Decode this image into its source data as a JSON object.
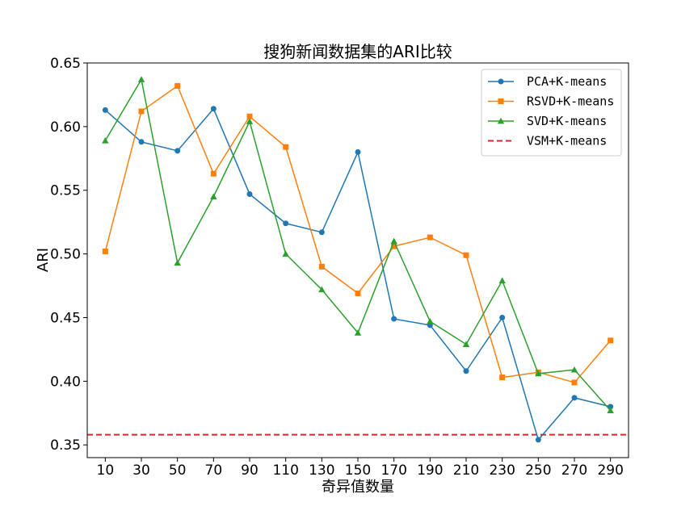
{
  "chart_data": {
    "type": "line",
    "title": "搜狗新闻数据集的ARI比较",
    "xlabel": "奇异值数量",
    "ylabel": "ARI",
    "x": [
      10,
      30,
      50,
      70,
      90,
      110,
      130,
      150,
      170,
      190,
      210,
      230,
      250,
      270,
      290
    ],
    "x_tick_labels": [
      "10",
      "30",
      "50",
      "70",
      "90",
      "110",
      "130",
      "150",
      "170",
      "190",
      "210",
      "230",
      "250",
      "270",
      "290"
    ],
    "ylim": [
      0.34,
      0.65
    ],
    "y_ticks": [
      0.35,
      0.4,
      0.45,
      0.5,
      0.55,
      0.6,
      0.65
    ],
    "y_tick_labels": [
      "0.35",
      "0.40",
      "0.45",
      "0.50",
      "0.55",
      "0.60",
      "0.65"
    ],
    "grid": false,
    "legend_position": "top-right",
    "series": [
      {
        "name": "PCA+K-means",
        "color": "#1f77b4",
        "marker": "circle",
        "values": [
          0.613,
          0.588,
          0.581,
          0.614,
          0.547,
          0.524,
          0.517,
          0.58,
          0.449,
          0.444,
          0.408,
          0.45,
          0.354,
          0.387,
          0.38
        ]
      },
      {
        "name": "RSVD+K-means",
        "color": "#ff7f0e",
        "marker": "square",
        "values": [
          0.502,
          0.612,
          0.632,
          0.563,
          0.608,
          0.584,
          0.49,
          0.469,
          0.506,
          0.513,
          0.499,
          0.403,
          0.407,
          0.399,
          0.432
        ]
      },
      {
        "name": "SVD+K-means",
        "color": "#2ca02c",
        "marker": "triangle",
        "values": [
          0.589,
          0.637,
          0.493,
          0.545,
          0.604,
          0.5,
          0.472,
          0.438,
          0.51,
          0.447,
          0.429,
          0.479,
          0.406,
          0.409,
          0.377
        ]
      }
    ],
    "reference_lines": [
      {
        "name": "VSM+K-means",
        "color": "#d62728",
        "style": "dashed",
        "value": 0.358
      }
    ]
  }
}
